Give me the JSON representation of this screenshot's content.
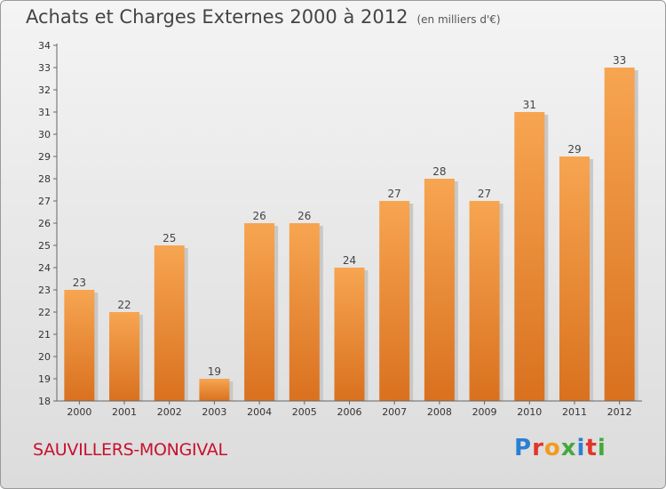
{
  "header": {
    "title": "Achats et Charges Externes 2000 à 2012",
    "unit": "(en milliers d'€)"
  },
  "footer": {
    "commune": "SAUVILLERS-MONGIVAL",
    "logo_text": "Proxiti",
    "logo_colors": [
      "#2a7fd4",
      "#e2352b",
      "#f39a1e",
      "#43a93c",
      "#2a7fd4",
      "#e2352b",
      "#43a93c"
    ]
  },
  "colors": {
    "bar_top": "#f7a551",
    "bar_bottom": "#d9711f",
    "bar_shadow": "#c8c8c8"
  },
  "chart_data": {
    "type": "bar",
    "title": "Achats et Charges Externes 2000 à 2012",
    "subtitle": "(en milliers d'€)",
    "categories": [
      "2000",
      "2001",
      "2002",
      "2003",
      "2004",
      "2005",
      "2006",
      "2007",
      "2008",
      "2009",
      "2010",
      "2011",
      "2012"
    ],
    "values": [
      23,
      22,
      25,
      19,
      26,
      26,
      24,
      27,
      28,
      27,
      31,
      29,
      33
    ],
    "ylim": [
      18,
      34
    ],
    "yticks": [
      18,
      19,
      20,
      21,
      22,
      23,
      24,
      25,
      26,
      27,
      28,
      29,
      30,
      31,
      32,
      33,
      34
    ],
    "xlabel": "",
    "ylabel": "",
    "grid": false,
    "data_labels": true
  }
}
